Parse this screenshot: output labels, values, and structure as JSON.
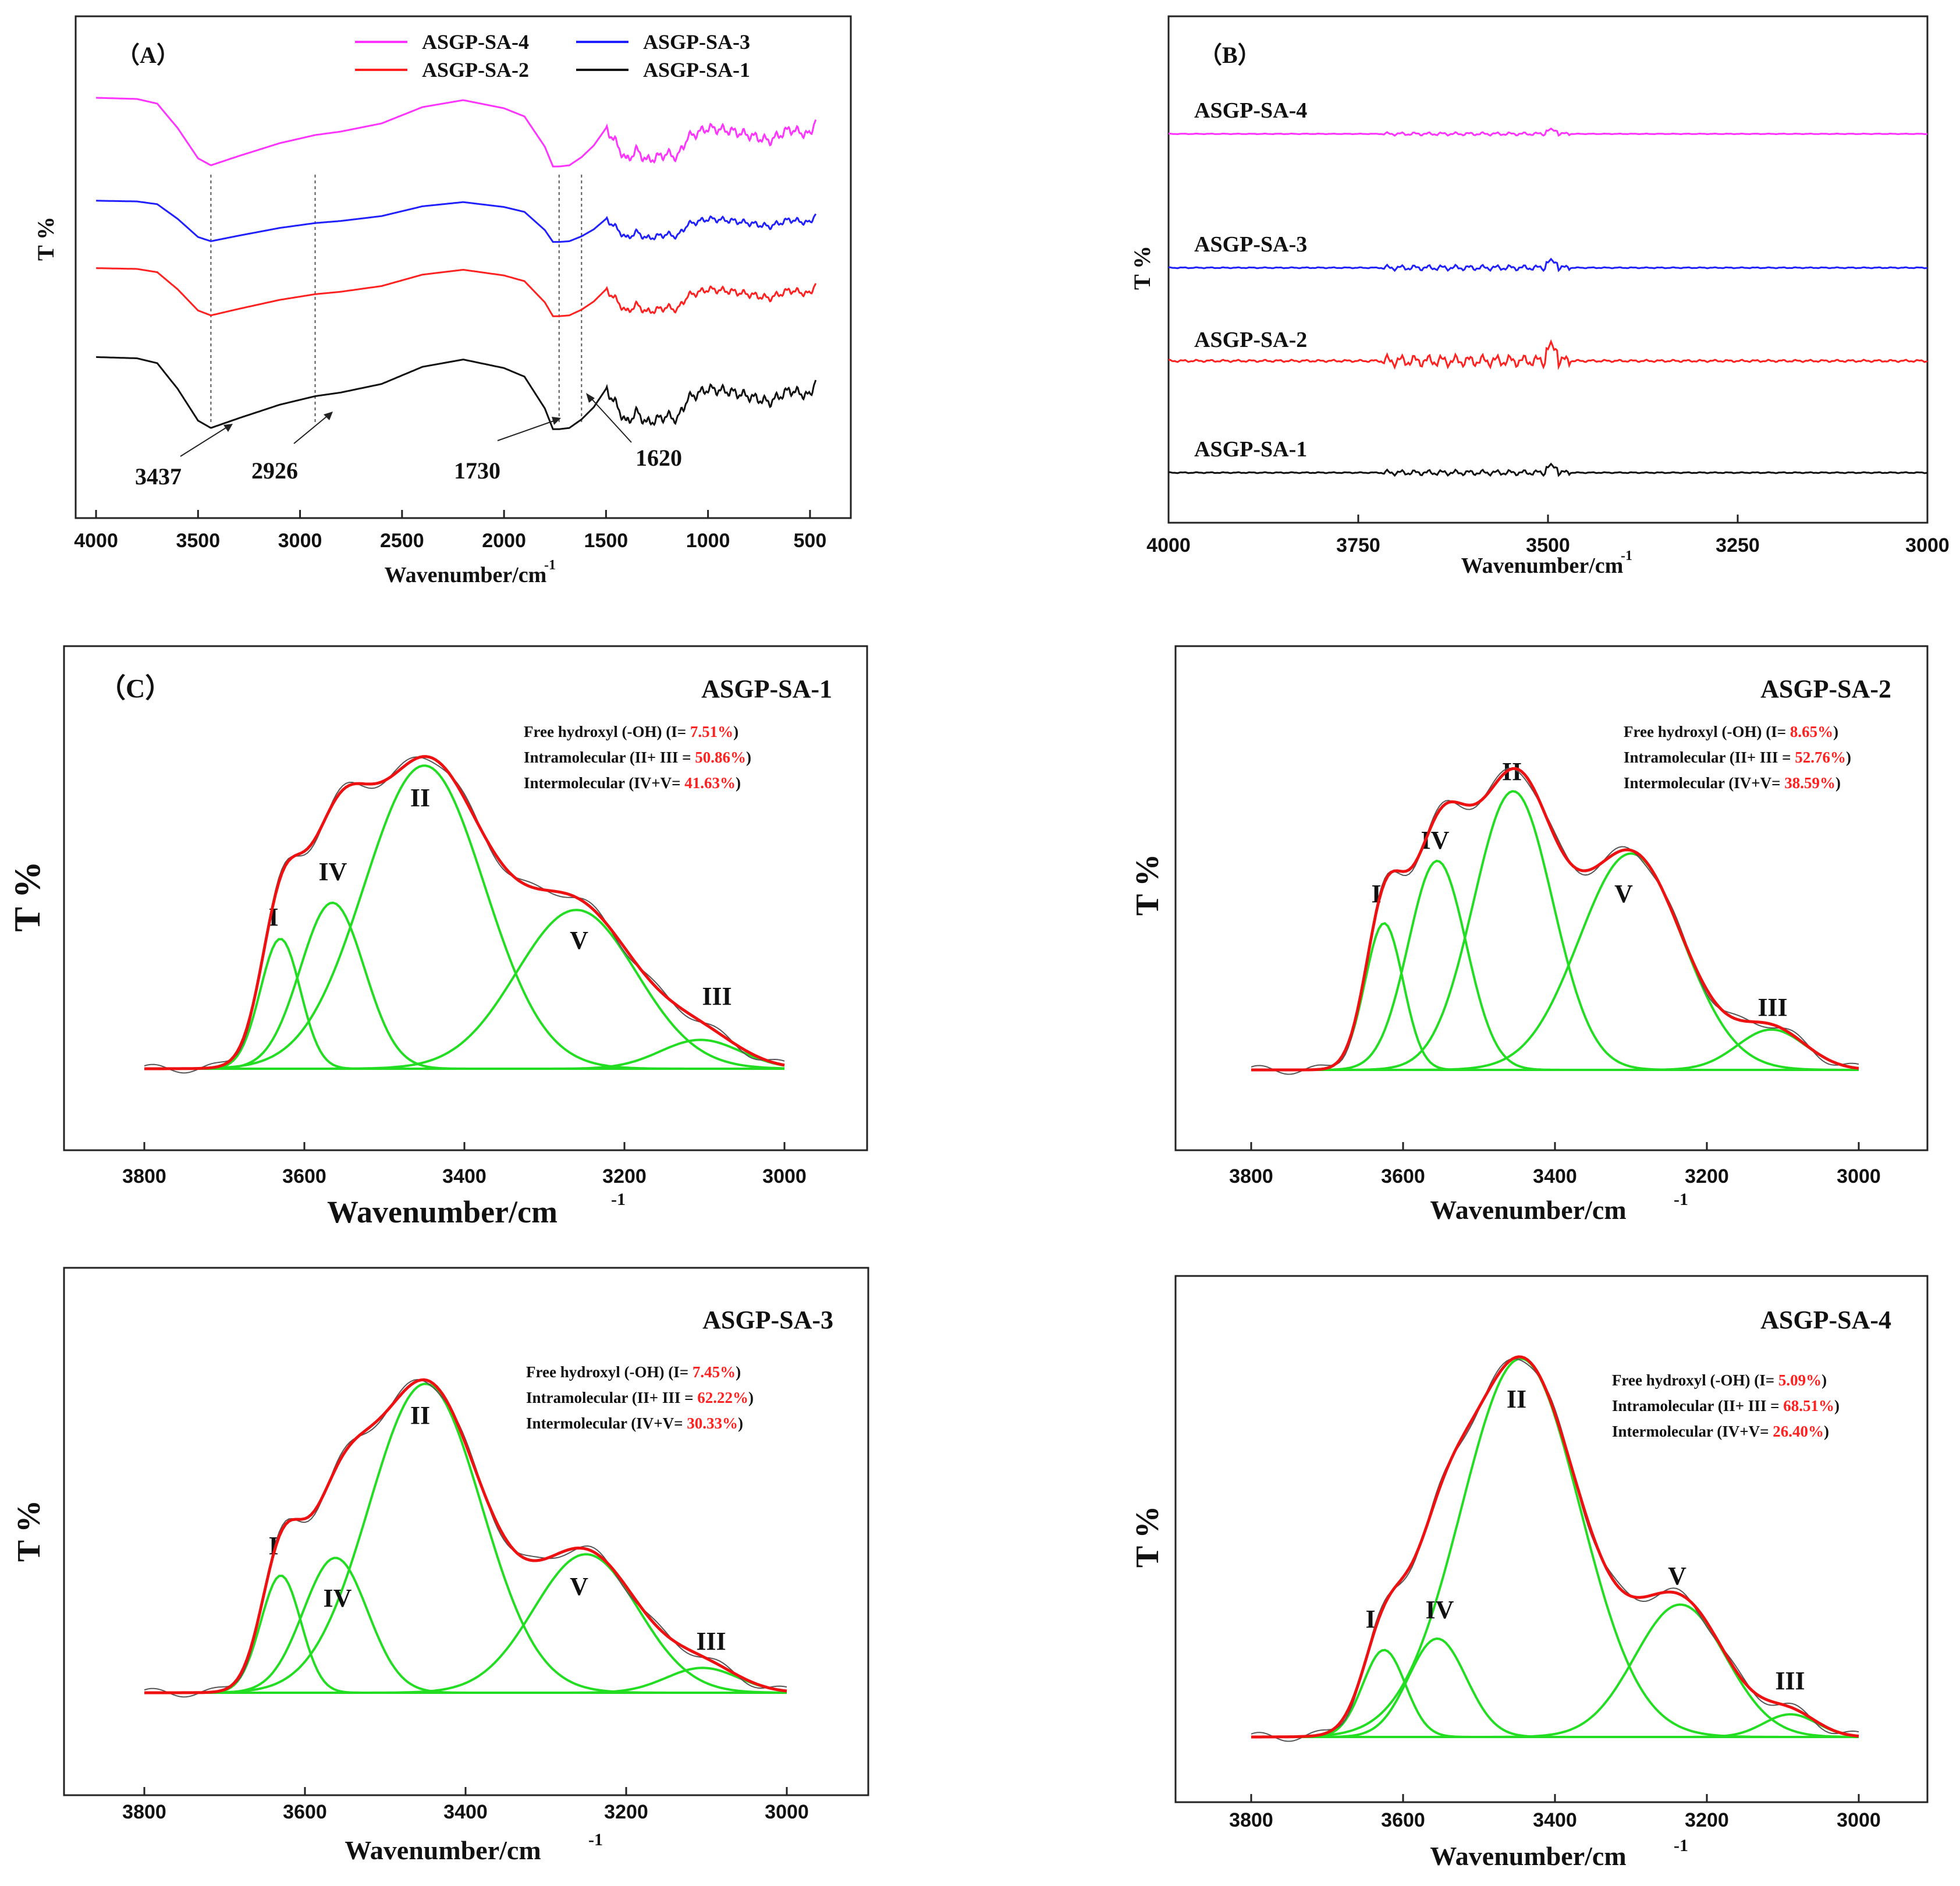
{
  "figure": {
    "type": "ftir_composite",
    "panels": 6
  },
  "colors": {
    "sa4": "#ff33ff",
    "sa3": "#2020ff",
    "sa2": "#ff2020",
    "sa1": "#111111",
    "fit_total": "#ee1111",
    "component": "#22dd22",
    "raw": "#555555",
    "highlight": "#ff2020"
  },
  "chart_data": [
    {
      "id": "A",
      "type": "line",
      "panel_label": "（A）",
      "xlabel": "Wavenumber/cm",
      "xlabel_sup": "-1",
      "ylabel": "T %",
      "xlim": [
        4100,
        300
      ],
      "xticks": [
        4000,
        3500,
        3000,
        2500,
        2000,
        1500,
        1000,
        500
      ],
      "legend": [
        "ASGP-SA-4",
        "ASGP-SA-3",
        "ASGP-SA-2",
        "ASGP-SA-1"
      ],
      "annotations": [
        "3437",
        "2926",
        "1730",
        "1620"
      ],
      "marker_lines_at": [
        3437,
        2926,
        1730,
        1620
      ],
      "series": [
        {
          "name": "ASGP-SA-4",
          "x": [
            4000,
            3800,
            3700,
            3600,
            3500,
            3437,
            3300,
            3100,
            2926,
            2800,
            2600,
            2400,
            2200,
            2000,
            1900,
            1800,
            1760,
            1730,
            1680,
            1620,
            1560,
            1500,
            1450,
            1400,
            1350,
            1300,
            1200,
            1150,
            1100,
            1000,
            900,
            800,
            700,
            600,
            500,
            470
          ],
          "y": [
            4,
            5,
            9,
            30,
            56,
            62,
            54,
            43,
            36,
            33,
            26,
            12,
            6,
            13,
            20,
            46,
            63,
            63,
            62,
            55,
            45,
            30,
            43,
            58,
            49,
            58,
            52,
            55,
            38,
            30,
            32,
            36,
            41,
            31,
            36,
            20
          ]
        },
        {
          "name": "ASGP-SA-3",
          "x": [
            4000,
            3800,
            3700,
            3600,
            3500,
            3437,
            3300,
            3100,
            2926,
            2800,
            2600,
            2400,
            2200,
            2000,
            1900,
            1800,
            1760,
            1730,
            1680,
            1620,
            1560,
            1500,
            1450,
            1400,
            1350,
            1300,
            1200,
            1150,
            1100,
            1000,
            900,
            800,
            700,
            600,
            500,
            470
          ],
          "y": [
            4,
            5,
            9,
            30,
            56,
            62,
            54,
            43,
            36,
            33,
            26,
            12,
            6,
            13,
            20,
            46,
            63,
            63,
            62,
            55,
            45,
            30,
            43,
            58,
            49,
            58,
            52,
            55,
            38,
            30,
            32,
            36,
            41,
            31,
            36,
            20
          ]
        },
        {
          "name": "ASGP-SA-2",
          "x": [
            4000,
            3800,
            3700,
            3600,
            3500,
            3437,
            3300,
            3100,
            2926,
            2800,
            2600,
            2400,
            2200,
            2000,
            1900,
            1800,
            1760,
            1730,
            1680,
            1620,
            1560,
            1500,
            1450,
            1400,
            1350,
            1300,
            1200,
            1150,
            1100,
            1000,
            900,
            800,
            700,
            600,
            500,
            470
          ],
          "y": [
            4,
            5,
            9,
            30,
            56,
            62,
            54,
            43,
            36,
            33,
            26,
            12,
            6,
            13,
            20,
            46,
            63,
            63,
            62,
            55,
            45,
            30,
            43,
            58,
            49,
            58,
            52,
            55,
            38,
            30,
            32,
            36,
            41,
            31,
            36,
            20
          ]
        },
        {
          "name": "ASGP-SA-1",
          "x": [
            4000,
            3800,
            3700,
            3600,
            3500,
            3437,
            3300,
            3100,
            2926,
            2800,
            2600,
            2400,
            2200,
            2000,
            1900,
            1800,
            1760,
            1730,
            1680,
            1620,
            1560,
            1500,
            1450,
            1400,
            1350,
            1300,
            1200,
            1150,
            1100,
            1000,
            900,
            800,
            700,
            600,
            500,
            470
          ],
          "y": [
            4,
            5,
            9,
            30,
            56,
            62,
            54,
            43,
            36,
            33,
            26,
            12,
            6,
            13,
            20,
            46,
            63,
            63,
            62,
            55,
            45,
            30,
            43,
            58,
            49,
            58,
            52,
            55,
            38,
            30,
            32,
            36,
            41,
            31,
            36,
            20
          ]
        }
      ]
    },
    {
      "id": "B",
      "type": "line",
      "panel_label": "（B）",
      "xlabel": "Wavenumber/cm",
      "xlabel_sup": "-1",
      "ylabel": "T %",
      "xlim": [
        4000,
        3000
      ],
      "xticks": [
        4000,
        3750,
        3500,
        3250,
        3000
      ],
      "series": [
        {
          "name": "ASGP-SA-4",
          "noise_amplitude": 0.6
        },
        {
          "name": "ASGP-SA-3",
          "noise_amplitude": 1.0
        },
        {
          "name": "ASGP-SA-2",
          "noise_amplitude": 2.2
        },
        {
          "name": "ASGP-SA-1",
          "noise_amplitude": 1.0
        }
      ]
    },
    {
      "id": "C1",
      "type": "area",
      "panel_label": "（C）",
      "title": "ASGP-SA-1",
      "xlabel": "Wavenumber/cm",
      "xlabel_sup": "-1",
      "ylabel": "T %",
      "xlim": [
        3900,
        2900
      ],
      "xticks": [
        3800,
        3600,
        3400,
        3200,
        3000
      ],
      "info": {
        "free_label": "Free hydroxyl (-OH) (I= ",
        "free_value": "7.51%",
        "intra_label": "Intramolecular (II+ III = ",
        "intra_value": "50.86%",
        "inter_label": "Intermolecular (IV+V= ",
        "inter_value": "41.63%",
        "close": ")"
      },
      "components": [
        {
          "name": "I",
          "center": 3630,
          "height": 0.36,
          "width": 25
        },
        {
          "name": "II",
          "center": 3450,
          "height": 0.84,
          "width": 75
        },
        {
          "name": "III",
          "center": 3105,
          "height": 0.08,
          "width": 50
        },
        {
          "name": "IV",
          "center": 3565,
          "height": 0.46,
          "width": 40
        },
        {
          "name": "V",
          "center": 3260,
          "height": 0.44,
          "width": 75
        }
      ]
    },
    {
      "id": "C2",
      "type": "area",
      "title": "ASGP-SA-2",
      "xlabel": "Wavenumber/cm",
      "xlabel_sup": "-1",
      "ylabel": "T %",
      "xlim": [
        3900,
        2900
      ],
      "xticks": [
        3800,
        3600,
        3400,
        3200,
        3000
      ],
      "info": {
        "free_label": "Free hydroxyl (-OH) (I= ",
        "free_value": "8.65%",
        "intra_label": "Intramolecular (II+ III = ",
        "intra_value": "52.76%",
        "inter_label": "Intermolecular (IV+V= ",
        "inter_value": "38.59%",
        "close": ")"
      },
      "components": [
        {
          "name": "I",
          "center": 3625,
          "height": 0.4,
          "width": 25
        },
        {
          "name": "II",
          "center": 3455,
          "height": 0.76,
          "width": 52
        },
        {
          "name": "III",
          "center": 3115,
          "height": 0.11,
          "width": 45
        },
        {
          "name": "IV",
          "center": 3555,
          "height": 0.57,
          "width": 38
        },
        {
          "name": "V",
          "center": 3300,
          "height": 0.59,
          "width": 68
        }
      ]
    },
    {
      "id": "C3",
      "type": "area",
      "title": "ASGP-SA-3",
      "xlabel": "Wavenumber/cm",
      "xlabel_sup": "-1",
      "ylabel": "T %",
      "xlim": [
        3900,
        2900
      ],
      "xticks": [
        3800,
        3600,
        3400,
        3200,
        3000
      ],
      "info": {
        "free_label": "Free hydroxyl (-OH) (I= ",
        "free_value": " 7.45%",
        "intra_label": "Intramolecular (II+ III = ",
        "intra_value": "62.22%",
        "inter_label": "Intermolecular (IV+V= ",
        "inter_value": "30.33%",
        "close": ")"
      },
      "components": [
        {
          "name": "I",
          "center": 3630,
          "height": 0.33,
          "width": 25
        },
        {
          "name": "II",
          "center": 3450,
          "height": 0.87,
          "width": 70
        },
        {
          "name": "III",
          "center": 3105,
          "height": 0.07,
          "width": 45
        },
        {
          "name": "IV",
          "center": 3562,
          "height": 0.38,
          "width": 40
        },
        {
          "name": "V",
          "center": 3250,
          "height": 0.39,
          "width": 65
        }
      ]
    },
    {
      "id": "C4",
      "type": "area",
      "title": "ASGP-SA-4",
      "xlabel": "Wavenumber/cm",
      "xlabel_sup": "-1",
      "ylabel": "T %",
      "xlim": [
        3900,
        2900
      ],
      "xticks": [
        3800,
        3600,
        3400,
        3200,
        3000
      ],
      "info": {
        "free_label": "Free hydroxyl (-OH) (I= ",
        "free_value": "5.09%",
        "intra_label": "Intramolecular (II+ III = ",
        "intra_value": "68.51%",
        "inter_label": "Intermolecular (IV+V= ",
        "inter_value": "26.40%",
        "close": ")"
      },
      "components": [
        {
          "name": "I",
          "center": 3625,
          "height": 0.23,
          "width": 28
        },
        {
          "name": "II",
          "center": 3445,
          "height": 1.0,
          "width": 78
        },
        {
          "name": "III",
          "center": 3090,
          "height": 0.06,
          "width": 35
        },
        {
          "name": "IV",
          "center": 3555,
          "height": 0.26,
          "width": 38
        },
        {
          "name": "V",
          "center": 3235,
          "height": 0.35,
          "width": 60
        }
      ]
    }
  ]
}
